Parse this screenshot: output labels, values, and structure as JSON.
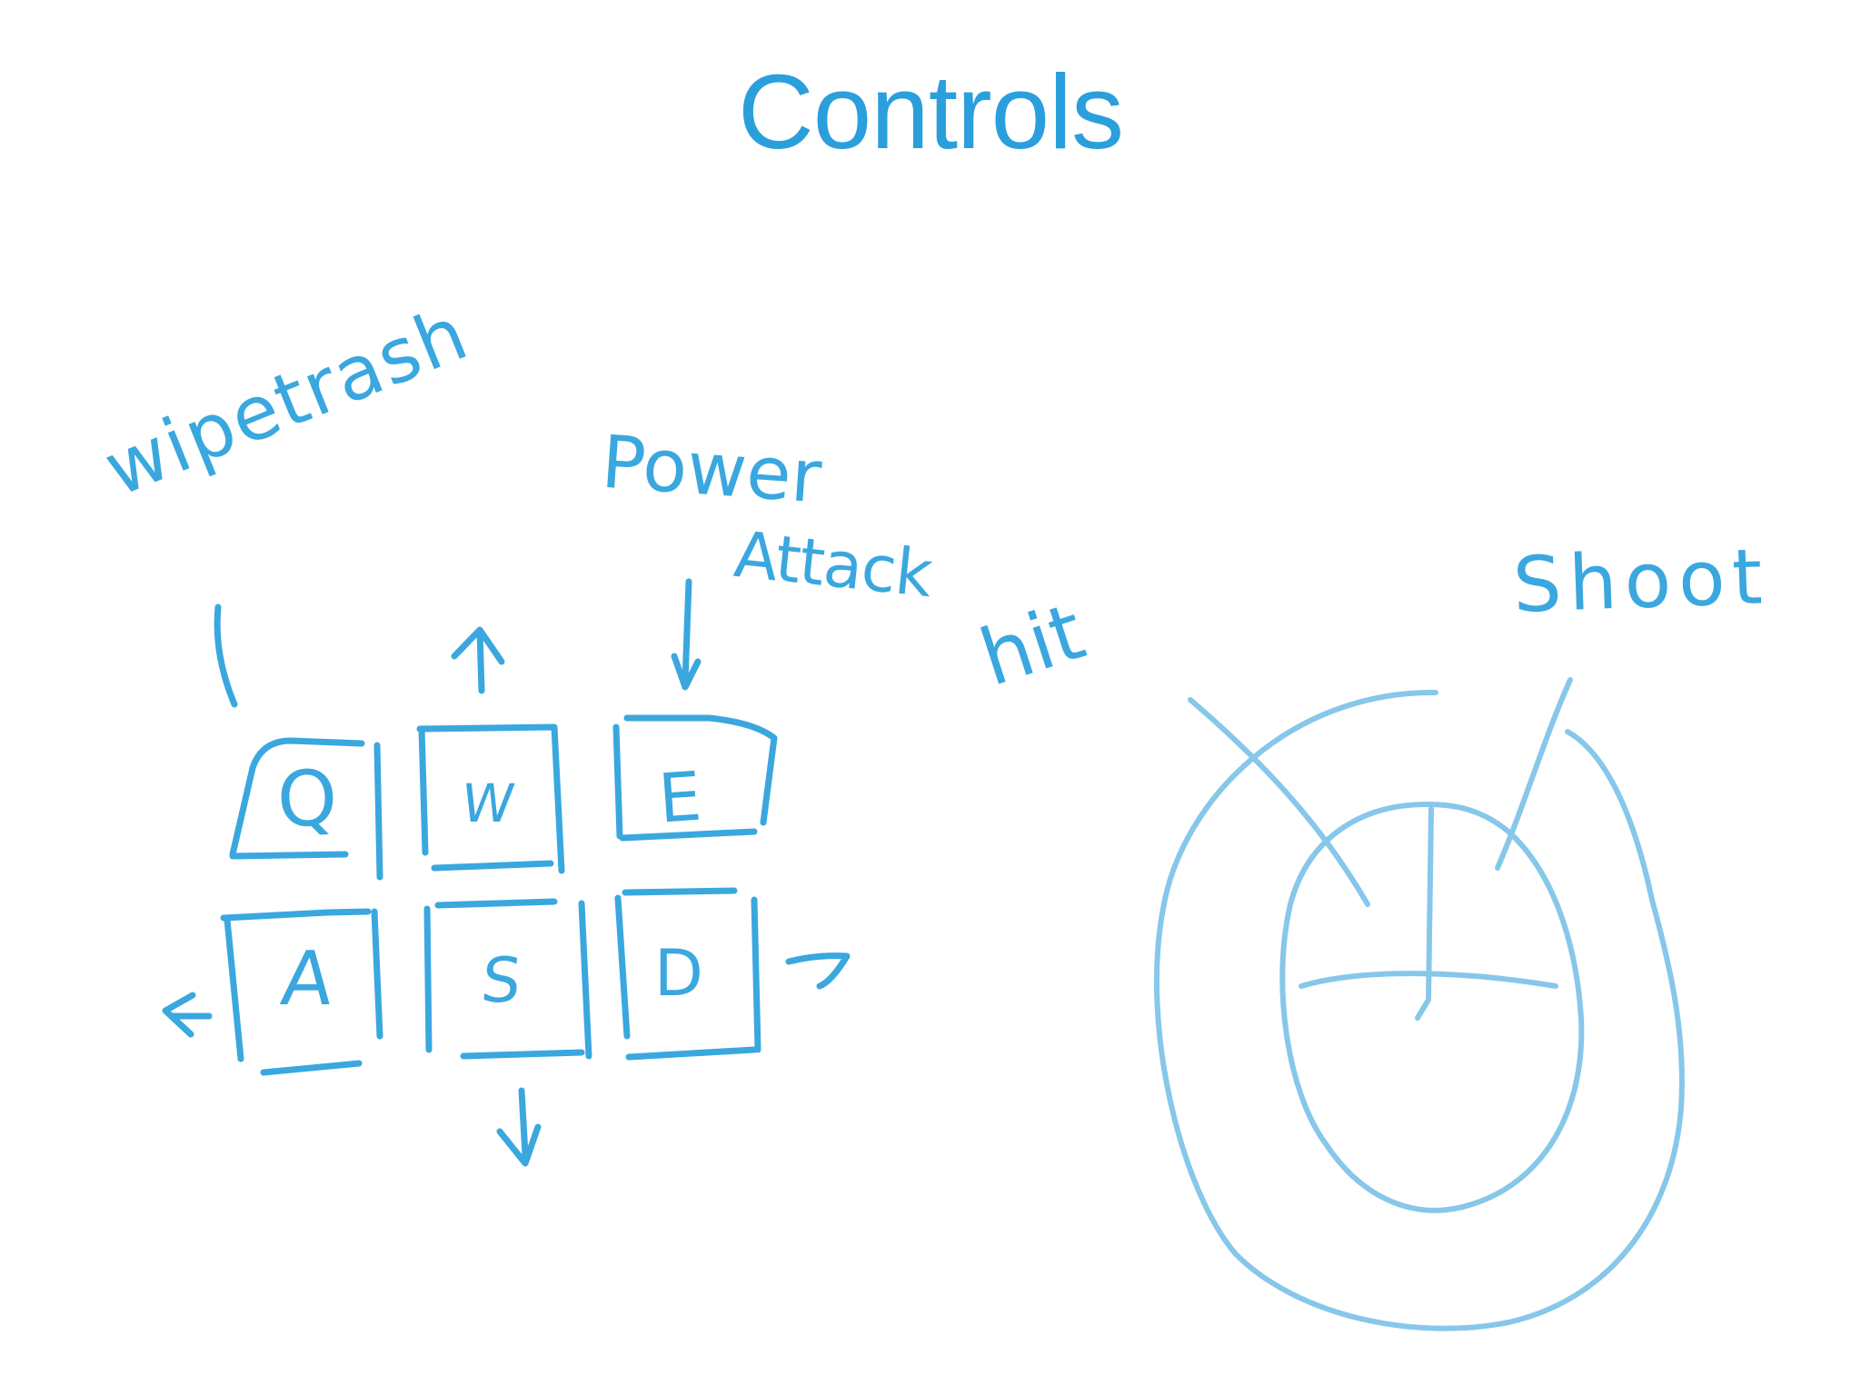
{
  "title": "Controls",
  "colors": {
    "title": "#2b9fdc",
    "ink": "#3aa7df",
    "ink_light": "#86c7ea"
  },
  "keyboard": {
    "keys": [
      {
        "id": "q",
        "letter": "Q"
      },
      {
        "id": "w",
        "letter": "W"
      },
      {
        "id": "e",
        "letter": "E"
      },
      {
        "id": "a",
        "letter": "A"
      },
      {
        "id": "s",
        "letter": "S"
      },
      {
        "id": "d",
        "letter": "D"
      }
    ],
    "labels": {
      "q_action": "wipetrash",
      "e_action_line1": "Power",
      "e_action_line2": "Attack"
    },
    "arrow_icons": [
      "up-arrow-icon",
      "down-arrow-icon",
      "left-arrow-icon",
      "right-arrow-icon"
    ]
  },
  "mouse": {
    "labels": {
      "left_button": "hit",
      "right_button": "Shoot"
    },
    "icon": "mouse-icon"
  }
}
